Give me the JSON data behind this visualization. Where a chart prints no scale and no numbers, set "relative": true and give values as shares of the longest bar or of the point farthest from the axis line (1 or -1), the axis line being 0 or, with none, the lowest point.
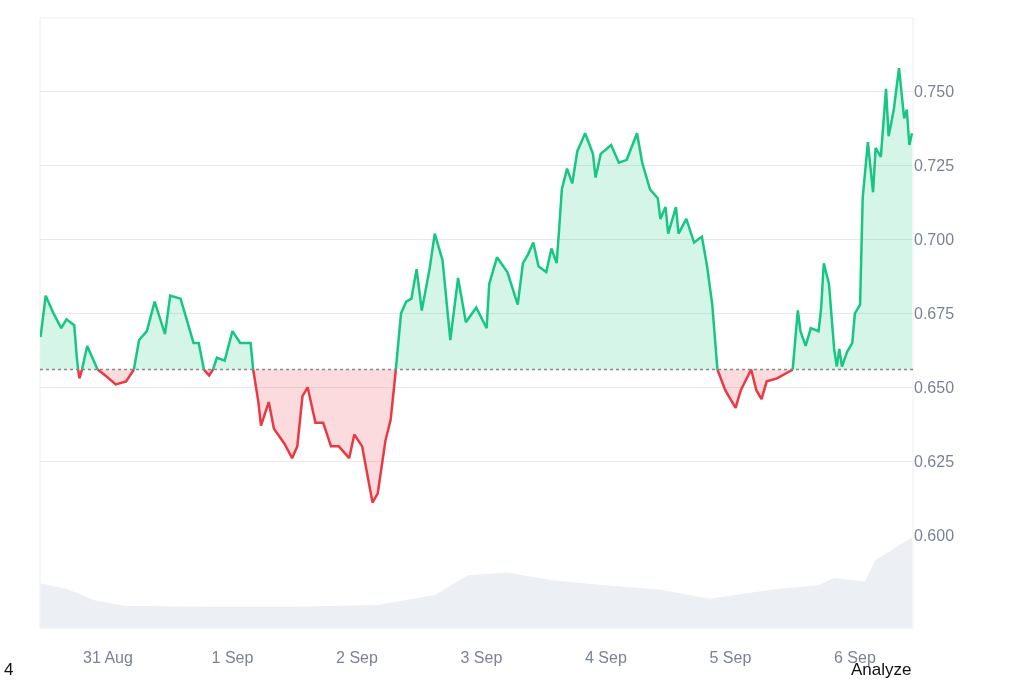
{
  "chart_data": [
    {
      "type": "area",
      "tick_labels": "y",
      "grid": "y",
      "x": [
        "--08-30T11:00",
        "--08-30T12:00",
        "--08-30T13:30",
        "--08-30T15:00",
        "--08-30T16:00",
        "--08-30T17:30",
        "--08-30T18:00",
        "--08-30T18:15",
        "--08-30T18:30",
        "--08-30T19:00",
        "--08-30T20:00",
        "--08-30T22:00",
        "--08-30T23:30",
        "--08-31T01:30",
        "--08-31T03:30",
        "--08-31T05:00",
        "--08-31T06:00",
        "--08-31T07:30",
        "--08-31T09:00",
        "--08-31T11:00",
        "--08-31T12:00",
        "--08-31T14:00",
        "--08-31T15:00",
        "--08-31T16:30",
        "--08-31T17:30",
        "--08-31T18:30",
        "--08-31T19:30",
        "--08-31T20:15",
        "--08-31T21:00",
        "--08-31T22:30",
        "--09-01T00:00",
        "--09-01T01:30",
        "--09-01T03:30",
        "--09-01T04:00",
        "--09-01T05:00",
        "--09-01T05:30",
        "--09-01T07:00",
        "--09-01T08:00",
        "--09-01T10:00",
        "--09-01T11:30",
        "--09-01T12:30",
        "--09-01T13:30",
        "--09-01T14:30",
        "--09-01T16:00",
        "--09-01T17:30",
        "--09-01T19:00",
        "--09-01T20:30",
        "--09-01T22:30",
        "--09-01T23:30",
        "--09-02T01:00",
        "--09-02T03:00",
        "--09-02T04:00",
        "--09-02T05:30",
        "--09-02T06:30",
        "--09-02T07:30",
        "--09-02T08:30",
        "--09-02T09:30",
        "--09-02T10:30",
        "--09-02T11:30",
        "--09-02T12:30",
        "--09-02T14:00",
        "--09-02T15:00",
        "--09-02T16:30",
        "--09-02T18:00",
        "--09-02T19:30",
        "--09-02T21:00",
        "--09-02T23:00",
        "--09-03T01:00",
        "--09-03T01:30",
        "--09-03T03:00",
        "--09-03T05:00",
        "--09-03T07:00",
        "--09-03T08:00",
        "--09-03T09:00",
        "--09-03T10:00",
        "--09-03T11:00",
        "--09-03T12:30",
        "--09-03T13:30",
        "--09-03T14:30",
        "--09-03T15:00",
        "--09-03T15:30",
        "--09-03T16:30",
        "--09-03T17:30",
        "--09-03T18:30",
        "--09-03T20:00",
        "--09-03T21:30",
        "--09-03T22:00",
        "--09-03T23:00",
        "--09-04T01:00",
        "--09-04T02:30",
        "--09-04T04:00",
        "--09-04T06:00",
        "--09-04T07:00",
        "--09-04T08:30",
        "--09-04T10:00",
        "--09-04T10:30",
        "--09-04T11:30",
        "--09-04T12:00",
        "--09-04T13:30",
        "--09-04T14:00",
        "--09-04T15:30",
        "--09-04T17:00",
        "--09-04T18:30",
        "--09-04T19:30",
        "--09-04T20:30",
        "--09-04T21:30",
        "--09-04T23:00",
        "--09-05T01:00",
        "--09-05T02:00",
        "--09-05T04:00",
        "--09-05T05:00",
        "--09-05T06:00",
        "--09-05T07:00",
        "--09-05T09:00",
        "--09-05T11:00",
        "--09-05T12:00",
        "--09-05T13:00",
        "--09-05T13:30",
        "--09-05T14:30",
        "--09-05T15:30",
        "--09-05T17:00",
        "--09-05T17:30",
        "--09-05T18:00",
        "--09-05T19:00",
        "--09-05T20:00",
        "--09-05T20:30",
        "--09-05T21:00",
        "--09-05T21:30",
        "--09-05T22:30",
        "--09-05T23:30",
        "--09-06T00:00",
        "--09-06T01:00",
        "--09-06T01:30",
        "--09-06T02:30",
        "--09-06T03:30",
        "--09-06T04:00",
        "--09-06T05:00",
        "--09-06T06:00",
        "--09-06T06:30",
        "--09-06T07:30",
        "--09-06T08:30",
        "--09-06T09:30",
        "--09-06T10:00",
        "--09-06T10:30",
        "--09-06T11:00"
      ],
      "series": [
        {
          "color": "#16c784",
          "values": [
            0.667,
            0.681,
            0.675,
            0.67,
            0.673,
            0.671,
            0.66,
            0.656,
            null,
            0.656,
            0.664,
            0.656,
            null,
            null,
            null,
            0.656,
            0.666,
            0.669,
            0.679,
            0.668,
            0.681,
            0.68,
            0.674,
            0.665,
            0.665,
            0.656,
            null,
            0.656,
            0.66,
            0.659,
            0.669,
            0.665,
            0.665,
            0.656,
            null,
            null,
            null,
            null,
            null,
            null,
            null,
            null,
            null,
            null,
            null,
            null,
            null,
            null,
            null,
            null,
            null,
            null,
            null,
            null,
            0.656,
            0.675,
            0.679,
            0.68,
            0.69,
            0.676,
            0.69,
            0.702,
            0.693,
            0.666,
            0.687,
            0.672,
            0.677,
            0.67,
            0.685,
            0.694,
            0.689,
            0.678,
            0.692,
            0.695,
            0.699,
            0.691,
            0.689,
            0.697,
            0.692,
            0.704,
            0.717,
            0.724,
            0.719,
            0.73,
            0.736,
            0.729,
            0.721,
            0.729,
            0.732,
            0.726,
            0.727,
            0.736,
            0.726,
            0.717,
            0.714,
            0.707,
            0.711,
            0.702,
            0.711,
            0.702,
            0.707,
            0.699,
            0.701,
            0.691,
            0.678,
            0.656,
            null,
            null,
            null,
            null,
            null,
            null,
            null,
            null,
            null,
            0.656,
            0.676,
            0.669,
            0.664,
            0.67,
            0.669,
            0.677,
            0.692,
            0.685,
            0.663,
            0.657,
            0.663,
            0.657,
            0.662,
            0.665,
            0.675,
            0.678,
            0.714,
            0.733,
            0.716,
            0.731,
            0.728,
            0.751,
            0.735,
            0.744,
            0.758,
            0.741,
            0.744,
            0.732,
            0.736
          ]
        },
        {
          "color": "#ea3943",
          "values": [
            null,
            null,
            null,
            null,
            null,
            null,
            null,
            0.656,
            0.653,
            0.656,
            null,
            0.656,
            0.654,
            0.651,
            0.652,
            0.656,
            null,
            null,
            null,
            null,
            null,
            null,
            null,
            null,
            null,
            0.656,
            0.654,
            0.656,
            null,
            null,
            null,
            null,
            null,
            0.656,
            0.645,
            0.637,
            0.645,
            0.636,
            0.631,
            0.626,
            0.63,
            0.647,
            0.65,
            0.638,
            0.638,
            0.63,
            0.63,
            0.626,
            0.634,
            0.63,
            0.611,
            0.614,
            0.632,
            0.639,
            0.656,
            null,
            null,
            null,
            null,
            null,
            null,
            null,
            null,
            null,
            null,
            null,
            null,
            null,
            null,
            null,
            null,
            null,
            null,
            null,
            null,
            null,
            null,
            null,
            null,
            null,
            null,
            null,
            null,
            null,
            null,
            null,
            null,
            null,
            null,
            null,
            null,
            null,
            null,
            null,
            null,
            null,
            null,
            null,
            null,
            null,
            null,
            null,
            null,
            null,
            null,
            0.656,
            0.649,
            0.643,
            0.649,
            0.656,
            0.649,
            0.646,
            0.652,
            0.653,
            0.655,
            0.656,
            null,
            null,
            null,
            null,
            null,
            null,
            null,
            null,
            null,
            null,
            null,
            null,
            null,
            null,
            null,
            null,
            null,
            null,
            null,
            null,
            null,
            null,
            null,
            null,
            null,
            null,
            null,
            null,
            null
          ]
        }
      ],
      "ref_lines": [
        {
          "axis": "y",
          "value": 0.656,
          "line_style": "dotted",
          "color": "#888888"
        }
      ],
      "xlim": [
        "--08-30T10:54",
        "--09-06T11:12"
      ],
      "ylim": [
        0.6,
        0.775
      ],
      "yticks": [
        {
          "value": 0.6,
          "label": "0.600"
        },
        {
          "value": 0.625,
          "label": "0.625"
        },
        {
          "value": 0.65,
          "label": "0.650"
        },
        {
          "value": 0.675,
          "label": "0.675"
        },
        {
          "value": 0.7,
          "label": "0.700"
        },
        {
          "value": 0.725,
          "label": "0.725"
        },
        {
          "value": 0.75,
          "label": "0.750"
        }
      ]
    },
    {
      "type": "area",
      "relative": true,
      "tick_labels": "x",
      "x": [
        "--08-30T11:00",
        "--08-30T16:00",
        "--08-30T21:30",
        "--08-31T03:15",
        "--08-31T19:30",
        "--09-01T12:00",
        "--09-02T04:00",
        "--09-02T15:00",
        "--09-02T21:30",
        "--09-03T05:00",
        "--09-03T13:00",
        "--09-03T23:30",
        "--09-04T10:30",
        "--09-04T20:00",
        "--09-05T08:00",
        "--09-05T17:00",
        "--09-05T20:00",
        "--09-06T02:00",
        "--09-06T04:00",
        "--09-06T11:00"
      ],
      "series": [
        {
          "color": "#eceff3",
          "values": [
            0.49,
            0.43,
            0.3,
            0.24,
            0.23,
            0.23,
            0.25,
            0.36,
            0.58,
            0.61,
            0.53,
            0.47,
            0.42,
            0.32,
            0.42,
            0.47,
            0.55,
            0.51,
            0.75,
            1.0
          ]
        }
      ],
      "xlim": [
        "--08-30T10:54",
        "--09-06T11:12"
      ],
      "xticks": [
        {
          "value": "--08-31",
          "label": "31 Aug"
        },
        {
          "value": "--09-01",
          "label": "1 Sep"
        },
        {
          "value": "--09-02",
          "label": "2 Sep"
        },
        {
          "value": "--09-03",
          "label": "3 Sep"
        },
        {
          "value": "--09-04",
          "label": "4 Sep"
        },
        {
          "value": "--09-05",
          "label": "5 Sep"
        },
        {
          "value": "--09-06",
          "label": "6 Sep"
        }
      ],
      "annotations": [
        "4",
        "Analyze"
      ]
    }
  ]
}
